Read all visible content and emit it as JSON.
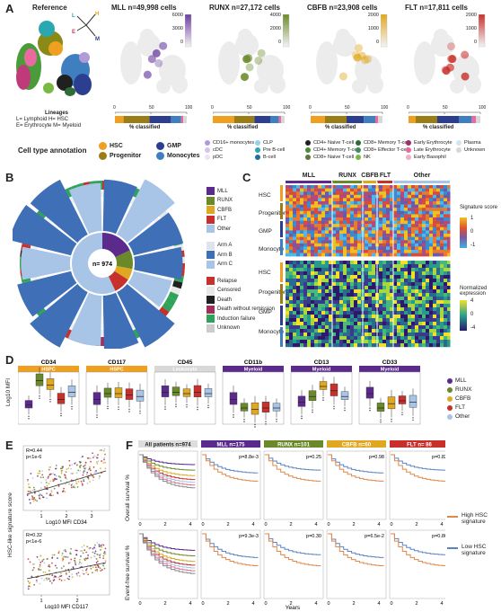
{
  "panel_labels": {
    "A": "A",
    "B": "B",
    "C": "C",
    "D": "D",
    "E": "E",
    "F": "F"
  },
  "panel_a": {
    "reference_title": "Reference",
    "arrow_labels": [
      "L",
      "H",
      "E",
      "M"
    ],
    "lineage_title": "Lineages",
    "lineage_lines": [
      "L= Lymphoid   H= HSC",
      "E= Erythrocyte  M= Myeloid"
    ],
    "umaps": [
      {
        "title": "MLL n=49,998 cells",
        "color": "#6b3fa0",
        "scale_ticks": [
          "6000",
          "3000",
          "0"
        ]
      },
      {
        "title": "RUNX n=27,172 cells",
        "color": "#6a8a2a",
        "scale_ticks": [
          "4000",
          "2000",
          "0"
        ]
      },
      {
        "title": "CBFB n=23,908 cells",
        "color": "#e0a820",
        "scale_ticks": [
          "2000",
          "1000",
          "0"
        ]
      },
      {
        "title": "FLT n=17,811 cells",
        "color": "#c8302c",
        "scale_ticks": [
          "2000",
          "1000",
          "0"
        ]
      }
    ],
    "classified_label": "% classified",
    "classified_ticks": [
      "0",
      "50",
      "100"
    ],
    "annotation_title": "Cell type annotation",
    "main_types": [
      {
        "label": "HSC",
        "color": "#f0a020"
      },
      {
        "label": "GMP",
        "color": "#2c3e8f"
      },
      {
        "label": "Progenitor",
        "color": "#9b7d18"
      },
      {
        "label": "Monocytes",
        "color": "#3f7fc0"
      }
    ],
    "sub_types": [
      {
        "label": "CD16+ monocytes",
        "color": "#b09bd8"
      },
      {
        "label": "CLP",
        "color": "#8fd2ea"
      },
      {
        "label": "CD4+ Naive T-cell",
        "color": "#202020"
      },
      {
        "label": "CD8+ Memory T-cell",
        "color": "#2f6b34"
      },
      {
        "label": "Early Erythrocyte",
        "color": "#a0306c"
      },
      {
        "label": "Plasma",
        "color": "#cfe5f5"
      },
      {
        "label": "cDC",
        "color": "#d5c3ea"
      },
      {
        "label": "Pre B-cell",
        "color": "#2aa7b0"
      },
      {
        "label": "CD4+ Memory T-cell",
        "color": "#4d8a3a"
      },
      {
        "label": "CD8+ Effector T-cell",
        "color": "#3b8e58"
      },
      {
        "label": "Late Erythrocyte",
        "color": "#e86aa0"
      },
      {
        "label": "Unknown",
        "color": "#d8d8d8"
      },
      {
        "label": "pDC",
        "color": "#ece3f5"
      },
      {
        "label": "B-cell",
        "color": "#1f6fa0"
      },
      {
        "label": "CD8+ Naive T-cell",
        "color": "#5a7a3a"
      },
      {
        "label": "NK",
        "color": "#7ab845"
      },
      {
        "label": "Early Basophil",
        "color": "#f2b0c8"
      }
    ]
  },
  "panel_b": {
    "center_label": "n= 974",
    "legend_groups": [
      [
        {
          "label": "MLL",
          "color": "#5b2a8c"
        },
        {
          "label": "RUNX",
          "color": "#6a8a2a"
        },
        {
          "label": "CBFB",
          "color": "#e0a820"
        },
        {
          "label": "FLT",
          "color": "#c8302c"
        },
        {
          "label": "Other",
          "color": "#a8c4e6"
        }
      ],
      [
        {
          "label": "Arm A",
          "color": "#dfe3ee"
        },
        {
          "label": "Arm B",
          "color": "#3f6fb6"
        },
        {
          "label": "Arm C",
          "color": "#a8c4e6"
        }
      ],
      [
        {
          "label": "Relapse",
          "color": "#c8302c"
        },
        {
          "label": "Censored",
          "color": "#e8e8e8"
        },
        {
          "label": "Death",
          "color": "#202020"
        },
        {
          "label": "Death without remission",
          "color": "#a0305a"
        },
        {
          "label": "Induction failure",
          "color": "#2fa35a"
        },
        {
          "label": "Unknown",
          "color": "#cccccc"
        }
      ]
    ]
  },
  "panel_c": {
    "group_headers": [
      {
        "label": "MLL",
        "color": "#5b2a8c"
      },
      {
        "label": "RUNX",
        "color": "#6a8a2a"
      },
      {
        "label": "CBFB",
        "color": "#e0a820"
      },
      {
        "label": "FLT",
        "color": "#c8302c"
      },
      {
        "label": "Other",
        "color": "#a8c4e6"
      }
    ],
    "row_labels_top": [
      "HSC",
      "Progenitor",
      "GMP",
      "Monocyte"
    ],
    "row_labels_bottom": [
      "HSC",
      "Progenitor",
      "GMP",
      "Monocyte"
    ],
    "legend1_title": "Signature score",
    "legend1_ticks": [
      "1",
      "0",
      "-1"
    ],
    "legend2_title": "Normalized expression",
    "legend2_ticks": [
      "4",
      "0",
      "-4"
    ]
  },
  "panel_d": {
    "ylabel": "Log10 MFI",
    "markers": [
      {
        "name": "CD34",
        "tag": "HSPC",
        "tag_color": "#f0a020"
      },
      {
        "name": "CD117",
        "tag": "HSPC",
        "tag_color": "#f0a020"
      },
      {
        "name": "CD45",
        "tag": "Leukocyte",
        "tag_color": "#d8d8d8"
      },
      {
        "name": "CD11b",
        "tag": "Myeloid",
        "tag_color": "#5b2a8c"
      },
      {
        "name": "CD13",
        "tag": "Myeloid",
        "tag_color": "#5b2a8c"
      },
      {
        "name": "CD33",
        "tag": "Myeloid",
        "tag_color": "#5b2a8c"
      }
    ],
    "legend": [
      {
        "label": "MLL",
        "color": "#5b2a8c"
      },
      {
        "label": "RUNX",
        "color": "#6a8a2a"
      },
      {
        "label": "CBFB",
        "color": "#e0a820"
      },
      {
        "label": "FLT",
        "color": "#c8302c"
      },
      {
        "label": "Other",
        "color": "#a8c4e6"
      }
    ]
  },
  "panel_e": {
    "ylabel": "HSC-like signature score",
    "plots": [
      {
        "stats": [
          "R=0.44",
          "p<1e-6"
        ],
        "xlabel": "Log10 MFI CD34",
        "xticks": [
          "1",
          "2",
          "3"
        ]
      },
      {
        "stats": [
          "R=0.32",
          "p<1e-6"
        ],
        "xlabel": "Log10 MFI CD117",
        "xticks": [
          "1",
          "2"
        ]
      }
    ]
  },
  "panel_f": {
    "ylabel_top": "Overall survival %",
    "ylabel_bottom": "Event-free survival %",
    "xlabel": "Years",
    "xticks": [
      "0",
      "2",
      "4"
    ],
    "yticks": [
      "100",
      "75",
      "50",
      "25",
      "0"
    ],
    "columns": [
      {
        "title": "All patients n=974",
        "color": "#dddddd",
        "p_top": "",
        "p_bottom": ""
      },
      {
        "title": "MLL n=175",
        "color": "#5b2a8c",
        "p_top": "p=8.8e-3",
        "p_bottom": "p=9.3e-3"
      },
      {
        "title": "RUNX n=101",
        "color": "#6a8a2a",
        "p_top": "p=0.25",
        "p_bottom": "p=0.30"
      },
      {
        "title": "CBFB n=60",
        "color": "#e0a820",
        "p_top": "p=0.98",
        "p_bottom": "p=6.5e-2"
      },
      {
        "title": "FLT n= 86",
        "color": "#c8302c",
        "p_top": "p=0.82",
        "p_bottom": "p=0.86"
      }
    ],
    "legend": [
      {
        "label": "High HSC signature",
        "color": "#e0874a"
      },
      {
        "label": "Low HSC signature",
        "color": "#5a84c0"
      }
    ]
  }
}
